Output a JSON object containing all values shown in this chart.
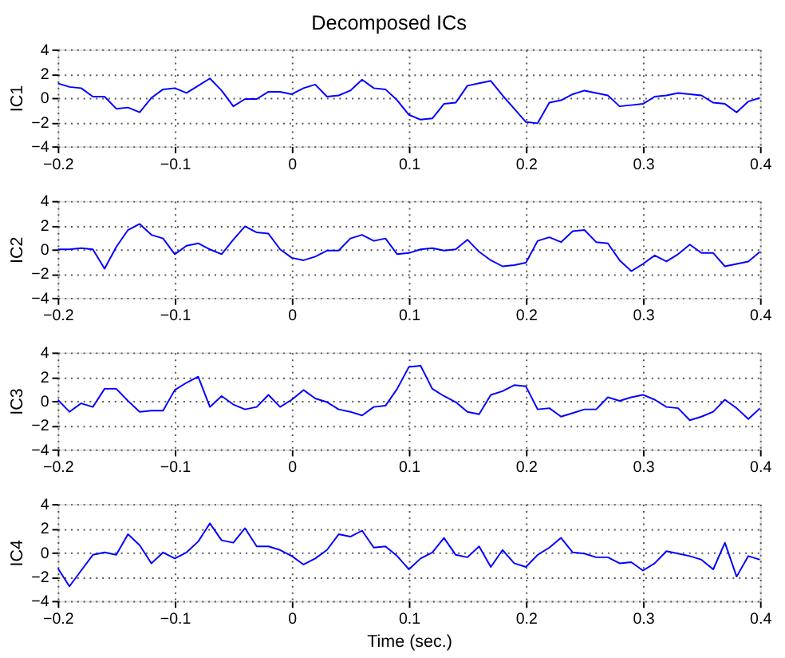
{
  "chart_data": [
    {
      "type": "line",
      "title": "Decomposed ICs",
      "ylabel": "IC1",
      "xlim": [
        -0.2,
        0.4
      ],
      "ylim": [
        -4,
        4
      ],
      "xticks": [
        -0.2,
        -0.1,
        0,
        0.1,
        0.2,
        0.3,
        0.4
      ],
      "yticks": [
        -4,
        -2,
        0,
        2,
        4
      ],
      "grid": true,
      "line_style": "solid",
      "marker": "none",
      "x": [
        -0.2,
        -0.19,
        -0.18,
        -0.17,
        -0.16,
        -0.15,
        -0.14,
        -0.13,
        -0.12,
        -0.11,
        -0.1,
        -0.09,
        -0.08,
        -0.07,
        -0.06,
        -0.05,
        -0.04,
        -0.03,
        -0.02,
        -0.01,
        0,
        0.01,
        0.02,
        0.03,
        0.04,
        0.05,
        0.06,
        0.07,
        0.08,
        0.09,
        0.1,
        0.11,
        0.12,
        0.13,
        0.14,
        0.15,
        0.16,
        0.17,
        0.18,
        0.19,
        0.2,
        0.21,
        0.22,
        0.23,
        0.24,
        0.25,
        0.26,
        0.27,
        0.28,
        0.29,
        0.3,
        0.31,
        0.32,
        0.33,
        0.34,
        0.35,
        0.36,
        0.37,
        0.38,
        0.39,
        0.4
      ],
      "series": [
        {
          "color": "#0000ff",
          "values": [
            1.2,
            0.9,
            0.8,
            0.1,
            0.1,
            -0.9,
            -0.8,
            -1.2,
            0.0,
            0.7,
            0.8,
            0.4,
            1.0,
            1.6,
            0.6,
            -0.7,
            -0.1,
            -0.1,
            0.5,
            0.5,
            0.3,
            0.8,
            1.1,
            0.1,
            0.2,
            0.6,
            1.5,
            0.8,
            0.7,
            -0.2,
            -1.4,
            -1.8,
            -1.7,
            -0.5,
            -0.4,
            1.0,
            1.2,
            1.4,
            0.2,
            -0.9,
            -2.0,
            -2.1,
            -0.4,
            -0.2,
            0.3,
            0.6,
            0.4,
            0.2,
            -0.7,
            -0.6,
            -0.5,
            0.1,
            0.2,
            0.4,
            0.3,
            0.2,
            -0.4,
            -0.5,
            -1.2,
            -0.3,
            0.0
          ]
        }
      ]
    },
    {
      "type": "line",
      "ylabel": "IC2",
      "xlim": [
        -0.2,
        0.4
      ],
      "ylim": [
        -4,
        4
      ],
      "xticks": [
        -0.2,
        -0.1,
        0,
        0.1,
        0.2,
        0.3,
        0.4
      ],
      "yticks": [
        -4,
        -2,
        0,
        2,
        4
      ],
      "grid": true,
      "line_style": "solid",
      "marker": "none",
      "x": [
        -0.2,
        -0.19,
        -0.18,
        -0.17,
        -0.16,
        -0.15,
        -0.14,
        -0.13,
        -0.12,
        -0.11,
        -0.1,
        -0.09,
        -0.08,
        -0.07,
        -0.06,
        -0.05,
        -0.04,
        -0.03,
        -0.02,
        -0.01,
        0,
        0.01,
        0.02,
        0.03,
        0.04,
        0.05,
        0.06,
        0.07,
        0.08,
        0.09,
        0.1,
        0.11,
        0.12,
        0.13,
        0.14,
        0.15,
        0.16,
        0.17,
        0.18,
        0.19,
        0.2,
        0.21,
        0.22,
        0.23,
        0.24,
        0.25,
        0.26,
        0.27,
        0.28,
        0.29,
        0.3,
        0.31,
        0.32,
        0.33,
        0.34,
        0.35,
        0.36,
        0.37,
        0.38,
        0.39,
        0.4
      ],
      "series": [
        {
          "color": "#0000ff",
          "values": [
            0.0,
            0.0,
            0.1,
            0.0,
            -1.6,
            0.2,
            1.6,
            2.1,
            1.2,
            0.9,
            -0.4,
            0.3,
            0.5,
            0.0,
            -0.4,
            0.8,
            1.9,
            1.4,
            1.3,
            0.0,
            -0.7,
            -0.9,
            -0.6,
            -0.1,
            -0.1,
            0.9,
            1.2,
            0.7,
            0.9,
            -0.4,
            -0.3,
            0.0,
            0.1,
            -0.1,
            0.0,
            0.8,
            -0.2,
            -0.9,
            -1.4,
            -1.3,
            -1.1,
            0.7,
            1.0,
            0.6,
            1.5,
            1.6,
            0.6,
            0.5,
            -0.9,
            -1.8,
            -1.2,
            -0.5,
            -1.0,
            -0.4,
            0.4,
            -0.3,
            -0.3,
            -1.4,
            -1.2,
            -1.0,
            -0.2
          ]
        }
      ]
    },
    {
      "type": "line",
      "ylabel": "IC3",
      "xlim": [
        -0.2,
        0.4
      ],
      "ylim": [
        -4,
        4
      ],
      "xticks": [
        -0.2,
        -0.1,
        0,
        0.1,
        0.2,
        0.3,
        0.4
      ],
      "yticks": [
        -4,
        -2,
        0,
        2,
        4
      ],
      "grid": true,
      "line_style": "solid",
      "marker": "none",
      "x": [
        -0.2,
        -0.19,
        -0.18,
        -0.17,
        -0.16,
        -0.15,
        -0.14,
        -0.13,
        -0.12,
        -0.11,
        -0.1,
        -0.09,
        -0.08,
        -0.07,
        -0.06,
        -0.05,
        -0.04,
        -0.03,
        -0.02,
        -0.01,
        0,
        0.01,
        0.02,
        0.03,
        0.04,
        0.05,
        0.06,
        0.07,
        0.08,
        0.09,
        0.1,
        0.11,
        0.12,
        0.13,
        0.14,
        0.15,
        0.16,
        0.17,
        0.18,
        0.19,
        0.2,
        0.21,
        0.22,
        0.23,
        0.24,
        0.25,
        0.26,
        0.27,
        0.28,
        0.29,
        0.3,
        0.31,
        0.32,
        0.33,
        0.34,
        0.35,
        0.36,
        0.37,
        0.38,
        0.39,
        0.4
      ],
      "series": [
        {
          "color": "#0000ff",
          "values": [
            0.1,
            -0.9,
            -0.2,
            -0.5,
            1.0,
            1.0,
            0.0,
            -0.9,
            -0.8,
            -0.8,
            0.9,
            1.5,
            2.0,
            -0.5,
            0.4,
            -0.3,
            -0.7,
            -0.5,
            0.5,
            -0.5,
            0.1,
            0.9,
            0.2,
            -0.1,
            -0.7,
            -0.9,
            -1.2,
            -0.5,
            -0.4,
            1.0,
            2.8,
            2.9,
            1.0,
            0.4,
            -0.1,
            -0.9,
            -1.1,
            0.5,
            0.8,
            1.3,
            1.2,
            -0.7,
            -0.6,
            -1.3,
            -1.0,
            -0.7,
            -0.7,
            0.3,
            0.0,
            0.3,
            0.5,
            0.1,
            -0.5,
            -0.6,
            -1.6,
            -1.3,
            -0.9,
            0.1,
            -0.6,
            -1.5,
            -0.6
          ]
        }
      ]
    },
    {
      "type": "line",
      "ylabel": "IC4",
      "xlabel": "Time (sec.)",
      "xlim": [
        -0.2,
        0.4
      ],
      "ylim": [
        -4,
        4
      ],
      "xticks": [
        -0.2,
        -0.1,
        0,
        0.1,
        0.2,
        0.3,
        0.4
      ],
      "yticks": [
        -4,
        -2,
        0,
        2,
        4
      ],
      "grid": true,
      "line_style": "solid",
      "marker": "none",
      "x": [
        -0.2,
        -0.19,
        -0.18,
        -0.17,
        -0.16,
        -0.15,
        -0.14,
        -0.13,
        -0.12,
        -0.11,
        -0.1,
        -0.09,
        -0.08,
        -0.07,
        -0.06,
        -0.05,
        -0.04,
        -0.03,
        -0.02,
        -0.01,
        0,
        0.01,
        0.02,
        0.03,
        0.04,
        0.05,
        0.06,
        0.07,
        0.08,
        0.09,
        0.1,
        0.11,
        0.12,
        0.13,
        0.14,
        0.15,
        0.16,
        0.17,
        0.18,
        0.19,
        0.2,
        0.21,
        0.22,
        0.23,
        0.24,
        0.25,
        0.26,
        0.27,
        0.28,
        0.29,
        0.3,
        0.31,
        0.32,
        0.33,
        0.34,
        0.35,
        0.36,
        0.37,
        0.38,
        0.39,
        0.4
      ],
      "series": [
        {
          "color": "#0000ff",
          "values": [
            -1.3,
            -2.8,
            -1.5,
            -0.2,
            0.0,
            -0.2,
            1.5,
            0.6,
            -0.9,
            0.0,
            -0.5,
            0.0,
            0.9,
            2.4,
            1.0,
            0.8,
            2.0,
            0.5,
            0.5,
            0.2,
            -0.3,
            -1.0,
            -0.5,
            0.2,
            1.5,
            1.3,
            1.8,
            0.4,
            0.5,
            -0.3,
            -1.4,
            -0.5,
            0.0,
            1.2,
            -0.2,
            -0.4,
            0.5,
            -1.2,
            0.2,
            -0.9,
            -1.2,
            -0.2,
            0.4,
            1.2,
            0.0,
            -0.1,
            -0.4,
            -0.4,
            -0.9,
            -0.8,
            -1.5,
            -0.9,
            0.1,
            -0.1,
            -0.3,
            -0.6,
            -1.4,
            0.8,
            -2.0,
            -0.3,
            -0.6
          ]
        }
      ]
    }
  ]
}
